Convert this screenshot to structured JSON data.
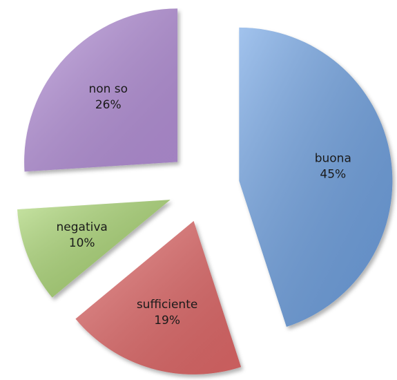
{
  "chart_data": {
    "type": "pie",
    "categories": [
      "buona",
      "sufficiente",
      "negativa",
      "non so"
    ],
    "values": [
      45,
      19,
      10,
      26
    ],
    "value_labels": [
      "45%",
      "19%",
      "10%",
      "26%"
    ],
    "colors": [
      "#6fa3e4",
      "#e46a6a",
      "#acd874",
      "#b893dc"
    ]
  }
}
